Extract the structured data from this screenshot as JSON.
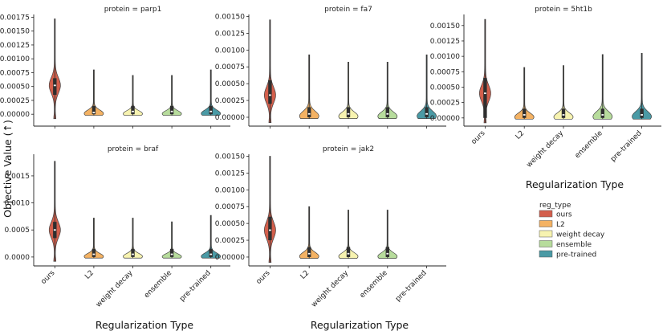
{
  "figure": {
    "ylabel": "Objective Value (↑)",
    "xlabel": "Regularization Type",
    "legend_title": "reg_type"
  },
  "chart_data": [
    {
      "type": "violin",
      "title": "protein = parp1",
      "categories": [
        "ours",
        "L2",
        "weight decay",
        "ensemble",
        "pre-trained"
      ],
      "ylim": [
        -0.0002,
        0.0018
      ],
      "yticks": [
        0.0,
        0.00025,
        0.0005,
        0.00075,
        0.001,
        0.00125,
        0.0015,
        0.00175
      ],
      "ytick_labels": [
        "0.00000",
        "0.00025",
        "0.00050",
        "0.00075",
        "0.00100",
        "0.00125",
        "0.00150",
        "0.00175"
      ],
      "show_xticks": false,
      "max": [
        0.00172,
        0.0008,
        0.0007,
        0.0007,
        0.0008
      ],
      "median": [
        0.00052,
        3e-05,
        5e-05,
        5e-05,
        5e-05
      ],
      "q1": [
        0.00035,
        0.0,
        0.0,
        0.0,
        0.0
      ],
      "q3": [
        0.00065,
        0.00015,
        0.00015,
        0.00015,
        0.00015
      ]
    },
    {
      "type": "violin",
      "title": "protein = fa7",
      "categories": [
        "ours",
        "L2",
        "weight decay",
        "ensemble",
        "pre-trained"
      ],
      "ylim": [
        -0.00012,
        0.00153
      ],
      "yticks": [
        0.0,
        0.00025,
        0.0005,
        0.00075,
        0.001,
        0.00125,
        0.0015
      ],
      "ytick_labels": [
        "0.00000",
        "0.00025",
        "0.00050",
        "0.00075",
        "0.00100",
        "0.00125",
        "0.00150"
      ],
      "show_xticks": false,
      "max": [
        0.00145,
        0.00093,
        0.00082,
        0.00082,
        0.00093
      ],
      "median": [
        0.00033,
        5e-05,
        5e-05,
        5e-05,
        5e-05
      ],
      "q1": [
        0.0002,
        0.0,
        0.0,
        0.0,
        0.0
      ],
      "q3": [
        0.00055,
        0.00015,
        0.00015,
        0.00015,
        0.00015
      ]
    },
    {
      "type": "violin",
      "title": "protein = 5ht1b",
      "categories": [
        "ours",
        "L2",
        "weight decay",
        "ensemble",
        "pre-trained"
      ],
      "ylim": [
        -0.00012,
        0.00168
      ],
      "yticks": [
        0.0,
        0.00025,
        0.0005,
        0.00075,
        0.001,
        0.00125,
        0.0015
      ],
      "ytick_labels": [
        "0.00000",
        "0.00025",
        "0.00050",
        "0.00075",
        "0.00100",
        "0.00125",
        "0.00150"
      ],
      "show_xticks": true,
      "max": [
        0.0016,
        0.00082,
        0.00085,
        0.00103,
        0.00105
      ],
      "median": [
        0.0004,
        5e-05,
        5e-05,
        5e-05,
        5e-05
      ],
      "q1": [
        0.0,
        0.0,
        0.0,
        0.0,
        0.0
      ],
      "q3": [
        0.00065,
        0.00015,
        0.00015,
        0.00015,
        0.00015
      ]
    },
    {
      "type": "violin",
      "title": "protein = braf",
      "categories": [
        "ours",
        "L2",
        "weight decay",
        "ensemble",
        "pre-trained"
      ],
      "ylim": [
        -0.00015,
        0.0019
      ],
      "yticks": [
        0.0,
        0.0005,
        0.001,
        0.0015
      ],
      "ytick_labels": [
        "0.0000",
        "0.0005",
        "0.0010",
        "0.0015"
      ],
      "show_xticks": true,
      "max": [
        0.00177,
        0.00072,
        0.00072,
        0.00065,
        0.00077
      ],
      "median": [
        0.0005,
        5e-05,
        5e-05,
        5e-05,
        5e-05
      ],
      "q1": [
        0.00035,
        0.0,
        0.0,
        0.0,
        0.0
      ],
      "q3": [
        0.00065,
        0.00015,
        0.00015,
        0.00015,
        0.00015
      ]
    },
    {
      "type": "violin",
      "title": "protein = jak2",
      "categories": [
        "ours",
        "L2",
        "weight decay",
        "ensemble",
        "pre-trained"
      ],
      "ylim": [
        -0.00012,
        0.00153
      ],
      "yticks": [
        0.0,
        0.00025,
        0.0005,
        0.00075,
        0.001,
        0.00125,
        0.0015
      ],
      "ytick_labels": [
        "0.00000",
        "0.00025",
        "0.00050",
        "0.00075",
        "0.00100",
        "0.00125",
        "0.00150"
      ],
      "show_xticks": true,
      "max": [
        0.0015,
        0.00075,
        0.0007,
        0.0007,
        null
      ],
      "median": [
        0.0004,
        5e-05,
        5e-05,
        5e-05,
        null
      ],
      "q1": [
        0.00025,
        0.0,
        0.0,
        0.0,
        null
      ],
      "q3": [
        0.0006,
        0.00015,
        0.00015,
        0.00015,
        null
      ]
    }
  ],
  "legend": [
    {
      "label": "ours",
      "color": "#d35f4c"
    },
    {
      "label": "L2",
      "color": "#f4b263"
    },
    {
      "label": "weight decay",
      "color": "#f7f3b0"
    },
    {
      "label": "ensemble",
      "color": "#b7dc9c"
    },
    {
      "label": "pre-trained",
      "color": "#4a9aa5"
    }
  ]
}
